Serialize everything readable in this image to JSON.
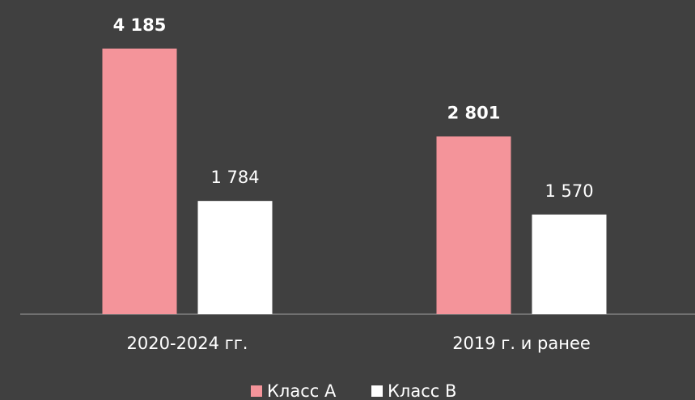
{
  "chart_data": {
    "type": "bar",
    "categories": [
      "2020-2024 гг.",
      "2019 г. и ранее"
    ],
    "series": [
      {
        "name": "Класс А",
        "color": "#f4949a",
        "values": [
          4185,
          2801
        ],
        "value_labels": [
          "4 185",
          "2 801"
        ]
      },
      {
        "name": "Класс В",
        "color": "#ffffff",
        "values": [
          1784,
          1570
        ],
        "value_labels": [
          "1 784",
          "1 570"
        ]
      }
    ],
    "legend": "bottom"
  }
}
